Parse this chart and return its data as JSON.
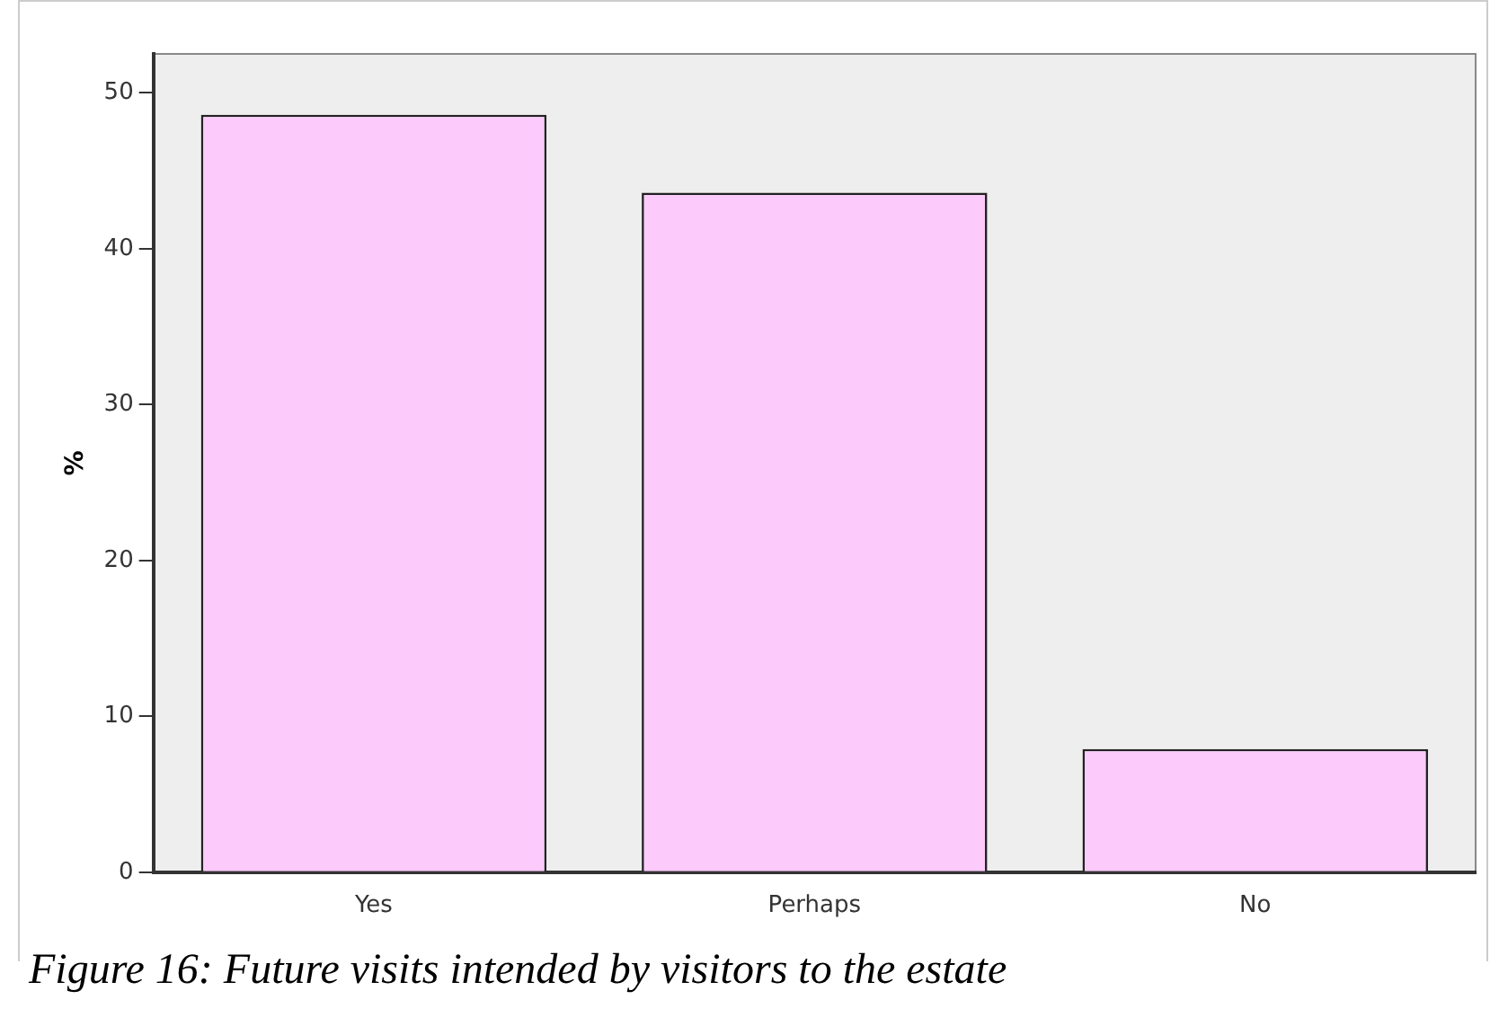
{
  "chart_data": {
    "type": "bar",
    "categories": [
      "Yes",
      "Perhaps",
      "No"
    ],
    "values": [
      48.6,
      43.6,
      7.9
    ],
    "color": "#fccbfc",
    "ylabel": "%",
    "ylim": [
      0,
      52.5
    ],
    "yticks": [
      0,
      10,
      20,
      30,
      40,
      50
    ],
    "grid": false,
    "legend": false,
    "annotations": [
      "Figure 16: Future visits intended by visitors to the estate"
    ]
  }
}
